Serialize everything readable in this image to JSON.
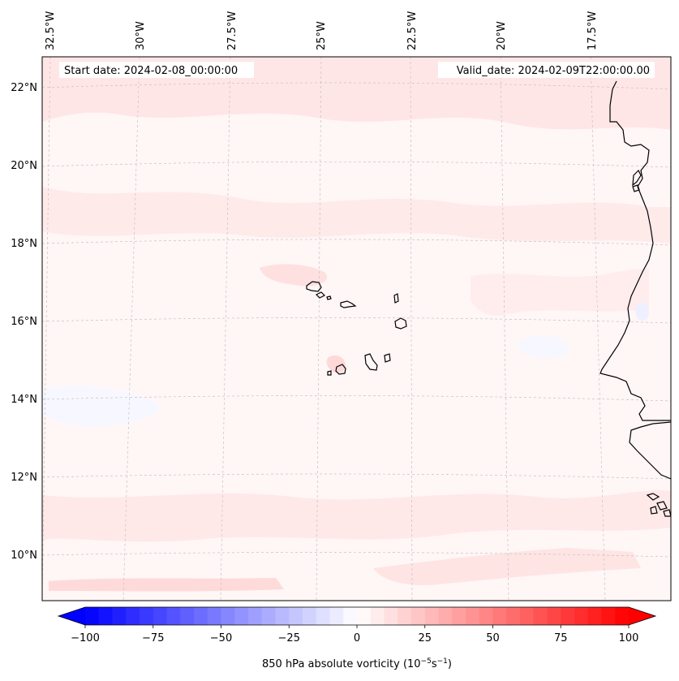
{
  "map": {
    "start_date_text": "Start date: 2024-02-08_00:00:00",
    "valid_date_text": "Valid_date: 2024-02-09T22:00:00.00",
    "longitude_labels": [
      "32.5°W",
      "30°W",
      "27.5°W",
      "25°W",
      "22.5°W",
      "20°W",
      "17.5°W"
    ],
    "latitude_labels": [
      "22°N",
      "20°N",
      "18°N",
      "16°N",
      "14°N",
      "12°N",
      "10°N"
    ],
    "field": "850 hPa absolute vorticity",
    "colors": {
      "positive_max": "#ff0000",
      "negative_max": "#0000ff",
      "neutral": "#ffffff",
      "background_tint": "#fff6f6",
      "coastline": "#000000",
      "gridline": "#bbbbbb"
    }
  },
  "colorbar": {
    "label_prefix": "850 hPa absolute vorticity (10",
    "label_exp1": "−5",
    "label_mid": "s",
    "label_exp2": "−1",
    "label_suffix": ")",
    "min": -100,
    "max": 100,
    "step": 5,
    "ticks": [
      -100,
      -75,
      -50,
      -25,
      0,
      25,
      50,
      75,
      100
    ],
    "tick_labels": [
      "−100",
      "−75",
      "−50",
      "−25",
      "0",
      "25",
      "50",
      "75",
      "100"
    ]
  }
}
